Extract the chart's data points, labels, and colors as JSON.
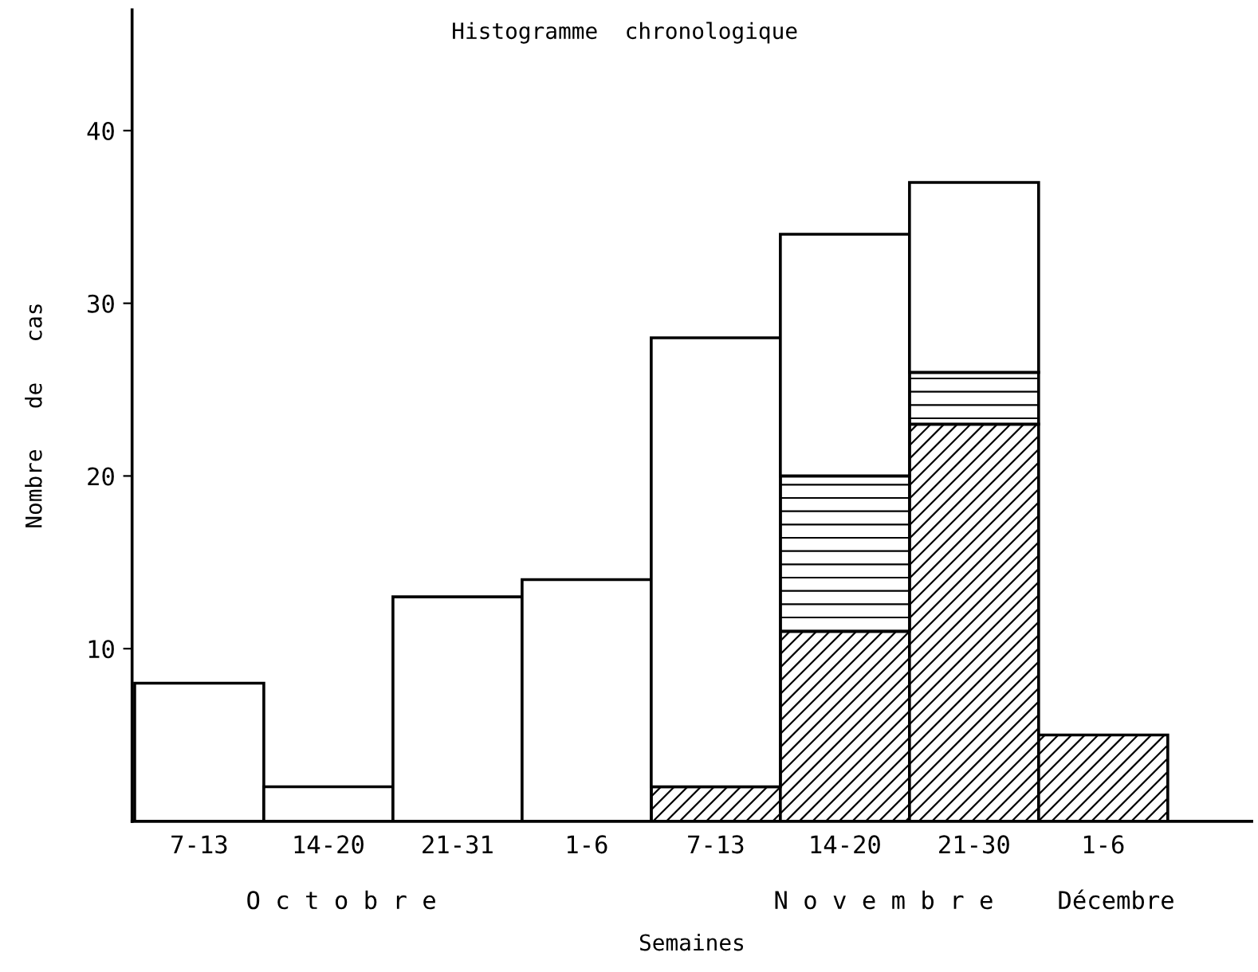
{
  "chart_data": {
    "type": "bar",
    "title": "Histogramme  chronologique",
    "xlabel": "Semaines",
    "ylabel": "Nombre   de   cas",
    "categories": [
      "7-13",
      "14-20",
      "21-31",
      "1-6",
      "7-13",
      "14-20",
      "21-30",
      "1-6"
    ],
    "stacked": true,
    "series": [
      {
        "color": "#000000",
        "values": [
          null,
          null,
          null,
          null,
          2,
          11,
          23,
          5
        ]
      },
      {
        "color": "#000000",
        "values": [
          null,
          null,
          null,
          null,
          null,
          9,
          3,
          null
        ]
      },
      {
        "color": "#ffffff",
        "values": [
          8,
          2,
          13,
          14,
          26,
          14,
          11,
          null
        ]
      }
    ],
    "ylim": [
      0,
      47
    ],
    "yticks": [
      10,
      20,
      30,
      40
    ],
    "grid": false,
    "legend": false,
    "annotations": [
      "O c t o b r e",
      "N o v e m b r e",
      "Décembre"
    ]
  }
}
